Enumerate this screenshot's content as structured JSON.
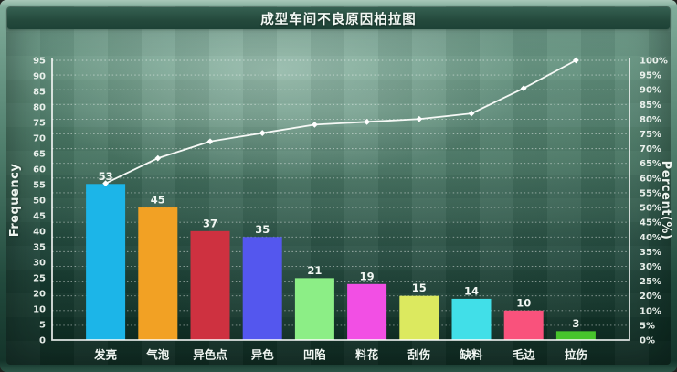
{
  "title": "成型车间不良原因柏拉图",
  "axes": {
    "left_title": "Frequency",
    "right_title": "Percent(%)",
    "left_ticks_top_to_bottom": [
      "95",
      "90",
      "85",
      "80",
      "75",
      "70",
      "65",
      "60",
      "55",
      "50",
      "45",
      "40",
      "35",
      "30",
      "25",
      "20",
      "10",
      "5",
      "0"
    ],
    "right_ticks_top_to_bottom": [
      "100%",
      "95%",
      "90%",
      "85%",
      "80%",
      "75%",
      "70%",
      "65%",
      "60%",
      "55%",
      "50%",
      "45%",
      "40%",
      "35%",
      "30%",
      "25%",
      "20%",
      "10%",
      "5%",
      "0%"
    ]
  },
  "chart_data": {
    "type": "bar",
    "subtype": "pareto (bars + cumulative percent line)",
    "title": "成型车间不良原因柏拉图",
    "categories": [
      "发亮",
      "气泡",
      "异色点",
      "异色",
      "凹陷",
      "料花",
      "刮伤",
      "缺料",
      "毛边",
      "拉伤"
    ],
    "values": [
      53,
      45,
      37,
      35,
      21,
      19,
      15,
      14,
      10,
      3
    ],
    "bar_value_labels": [
      "53",
      "45",
      "37",
      "35",
      "21",
      "19",
      "15",
      "14",
      "10",
      "3"
    ],
    "bar_colors": [
      "#1cb5e8",
      "#f2a124",
      "#ce3140",
      "#5457ee",
      "#8cee86",
      "#f24fe4",
      "#dce95f",
      "#41dfe8",
      "#f9527c",
      "#47c52c"
    ],
    "series": [
      {
        "name": "frequency-bars",
        "axis": "left",
        "values": [
          53,
          45,
          37,
          35,
          21,
          19,
          15,
          14,
          10,
          3
        ]
      },
      {
        "name": "cumulative-percent-line",
        "axis": "right",
        "values_pct_as_drawn": [
          56,
          65,
          71,
          74,
          77,
          78,
          79,
          81,
          90,
          100
        ]
      }
    ],
    "left_axis": {
      "label": "Frequency",
      "min": 0,
      "max": 95,
      "tick_step": 5,
      "note": "tick label 15 is absent on the rendered axis"
    },
    "right_axis": {
      "label": "Percent(%)",
      "min": 0,
      "max": 100,
      "tick_step": 5,
      "unit": "%",
      "note": "tick label 15% is absent on the rendered axis"
    },
    "grid": "horizontal dashed white chalk lines",
    "legend_position": "none",
    "line_color": "#f6f9f6",
    "marker": "small white diamond",
    "label_color": "#ffffff",
    "background": "green chalkboard gradient"
  }
}
